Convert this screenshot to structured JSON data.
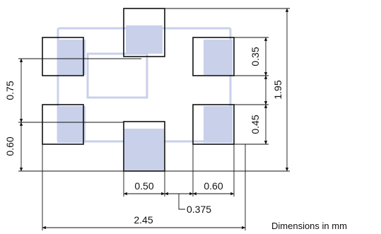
{
  "diagram": {
    "pads": [
      "top-center",
      "upper-left",
      "upper-right",
      "lower-left",
      "lower-right",
      "bottom-center"
    ],
    "dimensions": {
      "left_upper_pitch": "0.75",
      "left_lower_pitch": "0.60",
      "right_pad_height": "0.35",
      "right_pad_pitch": "0.45",
      "total_height": "1.95",
      "center_pad_width": "0.50",
      "right_pad_width": "0.60",
      "pad_gap": "0.375",
      "total_width": "2.45"
    },
    "note": "Dimensions in mm",
    "colors": {
      "pad_shading": "#c9d0ea",
      "lines": "#111111"
    }
  }
}
